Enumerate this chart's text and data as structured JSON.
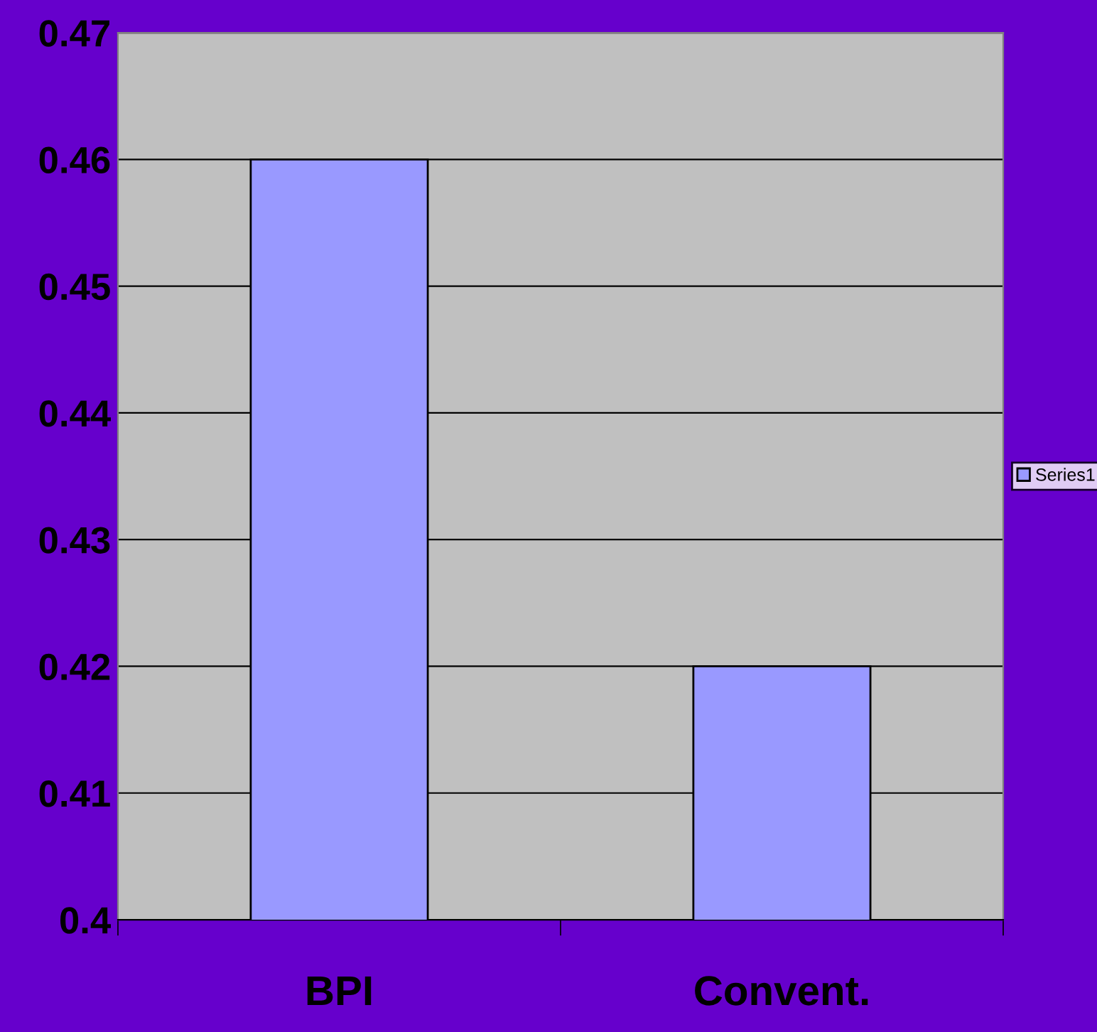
{
  "chart_data": {
    "type": "bar",
    "categories": [
      "BPI",
      "Convent."
    ],
    "series": [
      {
        "name": "Series1",
        "color": "#9999ff",
        "values": [
          0.46,
          0.42
        ]
      }
    ],
    "ylim": [
      0.4,
      0.47
    ],
    "yticks": [
      0.4,
      0.41,
      0.42,
      0.43,
      0.44,
      0.45,
      0.46,
      0.47
    ],
    "grid": "y",
    "legend": "right"
  }
}
